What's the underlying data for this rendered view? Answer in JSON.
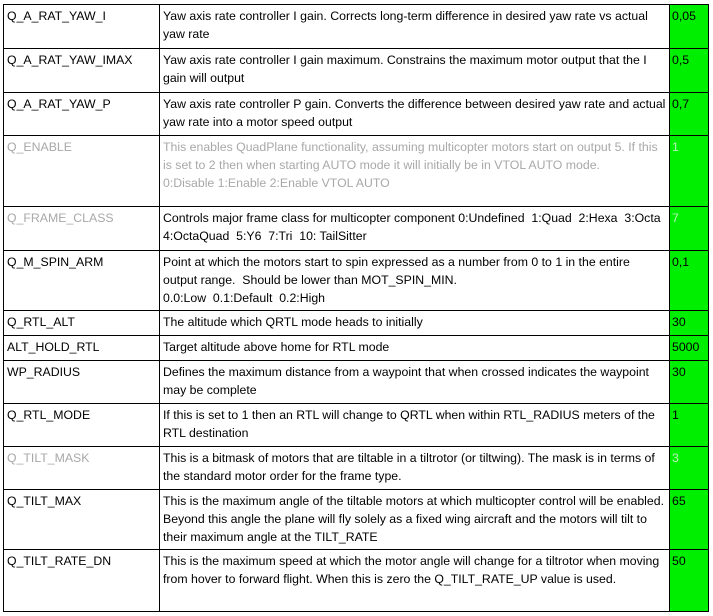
{
  "colors": {
    "value_cell_bg": "#00ee00",
    "disabled_text": "#a8a8a8"
  },
  "rows": [
    {
      "name": "Q_A_RAT_YAW_I",
      "description": "Yaw axis rate controller I gain. Corrects long-term difference in desired yaw rate vs actual yaw rate",
      "value": "0,05",
      "name_gray": false,
      "desc_gray": false,
      "value_gray": false
    },
    {
      "name": "Q_A_RAT_YAW_IMAX",
      "description": "Yaw axis rate controller I gain maximum. Constrains the maximum motor output that the I gain will output",
      "value": "0,5",
      "name_gray": false,
      "desc_gray": false,
      "value_gray": false
    },
    {
      "name": "Q_A_RAT_YAW_P",
      "description": "Yaw axis rate controller P gain. Converts the difference between desired yaw rate and actual yaw rate into a motor speed output",
      "value": "0,7",
      "name_gray": false,
      "desc_gray": false,
      "value_gray": false
    },
    {
      "name": "Q_ENABLE",
      "description": "This enables QuadPlane functionality, assuming multicopter motors start on output 5. If this is set to 2 then when starting AUTO mode it will initially be in VTOL AUTO mode.\n0:Disable 1:Enable 2:Enable VTOL AUTO",
      "value": "1",
      "name_gray": true,
      "desc_gray": true,
      "value_gray": true
    },
    {
      "name": "Q_FRAME_CLASS",
      "description": "Controls major frame class for multicopter component 0:Undefined  1:Quad  2:Hexa  3:Octa  4:OctaQuad  5:Y6  7:Tri  10: TailSitter",
      "value": "7",
      "name_gray": true,
      "desc_gray": false,
      "value_gray": true
    },
    {
      "name": "Q_M_SPIN_ARM",
      "description": "Point at which the motors start to spin expressed as a number from 0 to 1 in the entire output range.  Should be lower than MOT_SPIN_MIN.\n0.0:Low  0.1:Default  0.2:High",
      "value": "0,1",
      "name_gray": false,
      "desc_gray": false,
      "value_gray": false
    },
    {
      "name": "Q_RTL_ALT",
      "description": "The altitude which QRTL mode heads to initially",
      "value": "30",
      "name_gray": false,
      "desc_gray": false,
      "value_gray": false
    },
    {
      "name": "ALT_HOLD_RTL",
      "description": "Target altitude above home for RTL mode",
      "value": "5000",
      "name_gray": false,
      "desc_gray": false,
      "value_gray": false
    },
    {
      "name": "WP_RADIUS",
      "description": "Defines the maximum distance from a waypoint that when crossed indicates the waypoint may be complete",
      "value": "30",
      "name_gray": false,
      "desc_gray": false,
      "value_gray": false
    },
    {
      "name": "Q_RTL_MODE",
      "description": "If this is set to 1 then an RTL will change to QRTL when within RTL_RADIUS meters of the RTL destination",
      "value": "1",
      "name_gray": false,
      "desc_gray": false,
      "value_gray": false
    },
    {
      "name": "Q_TILT_MASK",
      "description": "This is a bitmask of motors that are tiltable in a tiltrotor (or tiltwing). The mask is in terms of the standard motor order for the frame type.",
      "value": "3",
      "name_gray": true,
      "desc_gray": false,
      "value_gray": true
    },
    {
      "name": "Q_TILT_MAX",
      "description": "This is the maximum angle of the tiltable motors at which multicopter control will be enabled. Beyond this angle the plane will fly solely as a fixed wing aircraft and the motors will tilt to their maximum angle at the TILT_RATE",
      "value": "65",
      "name_gray": false,
      "desc_gray": false,
      "value_gray": false
    },
    {
      "name": "Q_TILT_RATE_DN",
      "description": "This is the maximum speed at which the motor angle will change for a tiltrotor when moving from hover to forward flight. When this is zero the Q_TILT_RATE_UP value is used.",
      "value": "50",
      "name_gray": false,
      "desc_gray": false,
      "value_gray": false
    }
  ]
}
